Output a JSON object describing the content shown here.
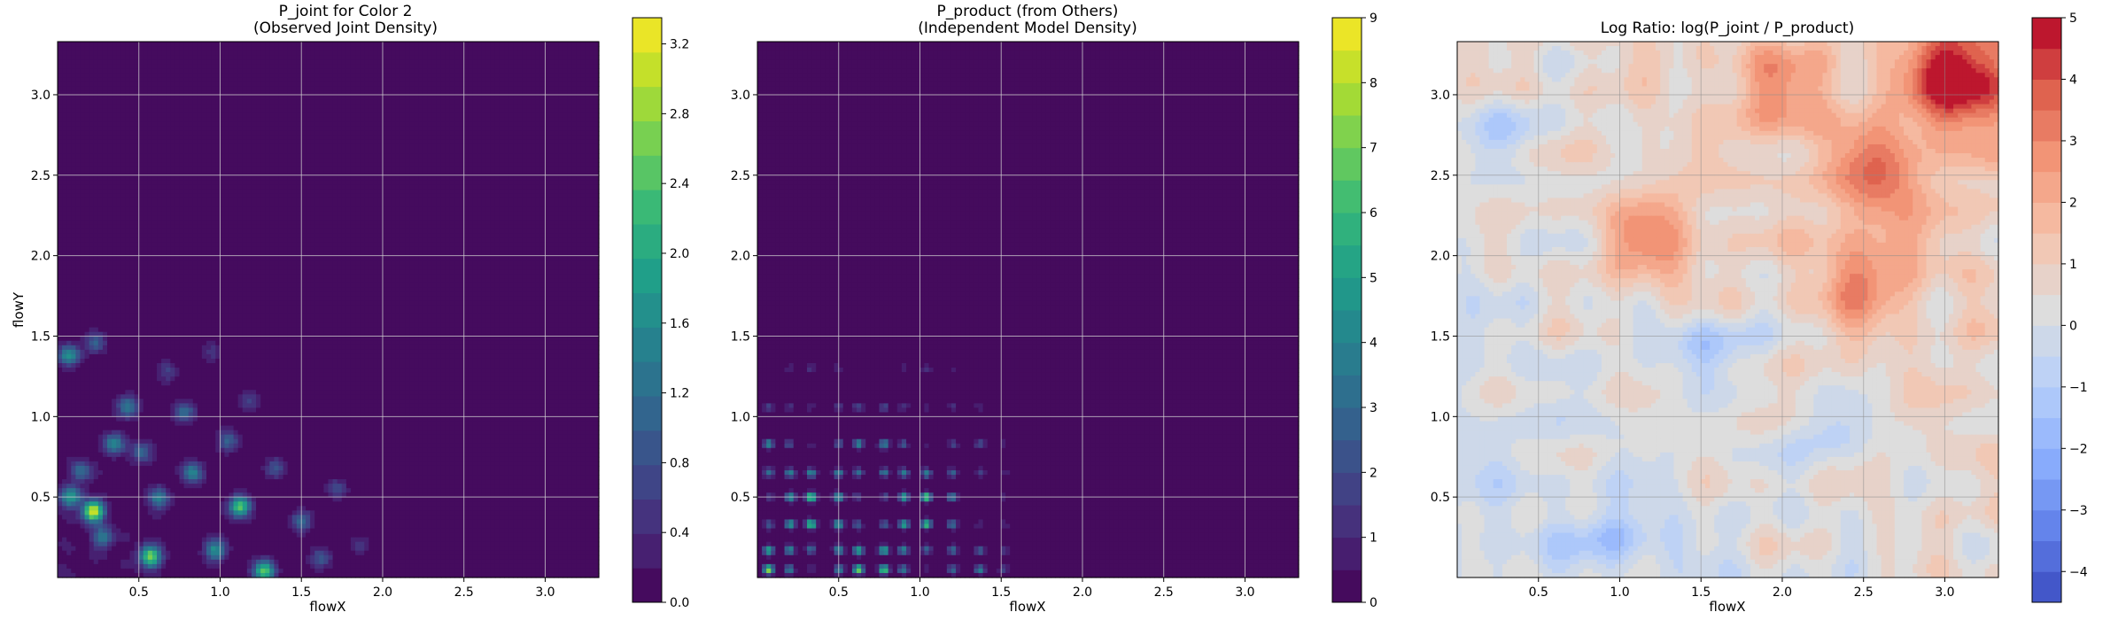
{
  "chart_data": [
    {
      "type": "heatmap",
      "subtype": "filled-contour",
      "title_lines": [
        "P_joint for Color 2",
        "(Observed Joint Density)"
      ],
      "xlabel": "flowX",
      "ylabel": "flowY",
      "xlim": [
        0.0,
        3.33
      ],
      "ylim": [
        0.0,
        3.33
      ],
      "xticks": [
        0.5,
        1.0,
        1.5,
        2.0,
        2.5,
        3.0
      ],
      "xtick_labels": [
        "0.5",
        "1.0",
        "1.5",
        "2.0",
        "2.5",
        "3.0"
      ],
      "yticks": [
        0.5,
        1.0,
        1.5,
        2.0,
        2.5,
        3.0
      ],
      "ytick_labels": [
        "0.5",
        "1.0",
        "1.5",
        "2.0",
        "2.5",
        "3.0"
      ],
      "grid": true,
      "colormap": "viridis",
      "colorbar": {
        "range": [
          0.0,
          3.35
        ],
        "ticks": [
          0.0,
          0.4,
          0.8,
          1.2,
          1.6,
          2.0,
          2.4,
          2.8,
          3.2
        ],
        "tick_labels": [
          "0.0",
          "0.4",
          "0.8",
          "1.2",
          "1.6",
          "2.0",
          "2.4",
          "2.8",
          "3.2"
        ],
        "levels": 17
      },
      "hotspots": [
        {
          "x": 0.22,
          "y": 0.41,
          "v": 3.2
        },
        {
          "x": 0.57,
          "y": 0.13,
          "v": 2.6
        },
        {
          "x": 1.12,
          "y": 0.44,
          "v": 2.4
        },
        {
          "x": 1.27,
          "y": 0.04,
          "v": 2.4
        },
        {
          "x": 0.07,
          "y": 1.38,
          "v": 1.7
        },
        {
          "x": 0.08,
          "y": 0.5,
          "v": 1.7
        },
        {
          "x": 0.35,
          "y": 0.83,
          "v": 1.5
        },
        {
          "x": 0.83,
          "y": 0.65,
          "v": 1.4
        },
        {
          "x": 0.43,
          "y": 1.06,
          "v": 1.3
        },
        {
          "x": 0.97,
          "y": 0.17,
          "v": 1.6
        },
        {
          "x": 1.5,
          "y": 0.35,
          "v": 1.1
        },
        {
          "x": 0.62,
          "y": 0.49,
          "v": 1.3
        },
        {
          "x": 0.23,
          "y": 1.46,
          "v": 1.0
        },
        {
          "x": 0.78,
          "y": 1.03,
          "v": 1.1
        },
        {
          "x": 1.05,
          "y": 0.85,
          "v": 1.0
        },
        {
          "x": 1.62,
          "y": 0.12,
          "v": 0.9
        },
        {
          "x": 0.28,
          "y": 0.25,
          "v": 1.2
        },
        {
          "x": 1.34,
          "y": 0.68,
          "v": 0.8
        },
        {
          "x": 0.52,
          "y": 0.78,
          "v": 1.0
        },
        {
          "x": 0.15,
          "y": 0.66,
          "v": 1.1
        },
        {
          "x": 1.18,
          "y": 1.1,
          "v": 0.6
        },
        {
          "x": 0.95,
          "y": 1.4,
          "v": 0.5
        },
        {
          "x": 1.72,
          "y": 0.55,
          "v": 0.7
        },
        {
          "x": 0.67,
          "y": 1.28,
          "v": 0.6
        },
        {
          "x": 1.86,
          "y": 0.2,
          "v": 0.5
        }
      ]
    },
    {
      "type": "heatmap",
      "subtype": "filled-contour",
      "title_lines": [
        "P_product (from Others)",
        "(Independent Model Density)"
      ],
      "xlabel": "flowX",
      "ylabel": "",
      "xlim": [
        0.0,
        3.33
      ],
      "ylim": [
        0.0,
        3.33
      ],
      "xticks": [
        0.5,
        1.0,
        1.5,
        2.0,
        2.5,
        3.0
      ],
      "xtick_labels": [
        "0.5",
        "1.0",
        "1.5",
        "2.0",
        "2.5",
        "3.0"
      ],
      "yticks": [
        0.5,
        1.0,
        1.5,
        2.0,
        2.5,
        3.0
      ],
      "ytick_labels": [
        "0.5",
        "1.0",
        "1.5",
        "2.0",
        "2.5",
        "3.0"
      ],
      "grid": true,
      "colormap": "viridis",
      "colorbar": {
        "range": [
          0,
          9
        ],
        "ticks": [
          0,
          1,
          2,
          3,
          4,
          5,
          6,
          7,
          8,
          9
        ],
        "tick_labels": [
          "0",
          "1",
          "2",
          "3",
          "4",
          "5",
          "6",
          "7",
          "8",
          "9"
        ],
        "levels": 18
      },
      "marginal_x_peaks": [
        0.07,
        0.2,
        0.33,
        0.5,
        0.62,
        0.78,
        0.9,
        1.04,
        1.2,
        1.37,
        1.52
      ],
      "marginal_y_peaks": [
        0.05,
        0.17,
        0.33,
        0.5,
        0.65,
        0.83,
        1.06,
        1.3,
        1.5
      ],
      "peak_value": 8.5
    },
    {
      "type": "heatmap",
      "subtype": "filled-contour",
      "title_lines": [
        "Log Ratio: log(P_joint / P_product)"
      ],
      "xlabel": "flowX",
      "ylabel": "",
      "xlim": [
        0.0,
        3.33
      ],
      "ylim": [
        0.0,
        3.33
      ],
      "xticks": [
        0.5,
        1.0,
        1.5,
        2.0,
        2.5,
        3.0
      ],
      "xtick_labels": [
        "0.5",
        "1.0",
        "1.5",
        "2.0",
        "2.5",
        "3.0"
      ],
      "yticks": [
        0.5,
        1.0,
        1.5,
        2.0,
        2.5,
        3.0
      ],
      "ytick_labels": [
        "0.5",
        "1.0",
        "1.5",
        "2.0",
        "2.5",
        "3.0"
      ],
      "grid": true,
      "colormap": "coolwarm",
      "colorbar": {
        "range": [
          -4.5,
          5
        ],
        "ticks": [
          -4,
          -3,
          -2,
          -1,
          0,
          1,
          2,
          3,
          4,
          5
        ],
        "tick_labels": [
          "−4",
          "−3",
          "−2",
          "−1",
          "0",
          "1",
          "2",
          "3",
          "4",
          "5"
        ],
        "levels": 19
      },
      "hot_regions": [
        {
          "x": 3.1,
          "y": 3.1,
          "v": 4.5
        },
        {
          "x": 2.6,
          "y": 2.5,
          "v": 2.5
        },
        {
          "x": 2.5,
          "y": 1.85,
          "v": 2.2
        },
        {
          "x": 1.2,
          "y": 2.1,
          "v": 2.3
        },
        {
          "x": 2.0,
          "y": 3.0,
          "v": 1.8
        }
      ],
      "cold_regions": [
        {
          "x": 1.55,
          "y": 1.45,
          "v": -1.8
        },
        {
          "x": 0.3,
          "y": 2.8,
          "v": -1.2
        },
        {
          "x": 1.0,
          "y": 0.25,
          "v": -1.5
        },
        {
          "x": 2.3,
          "y": 0.9,
          "v": -1.2
        }
      ]
    }
  ]
}
